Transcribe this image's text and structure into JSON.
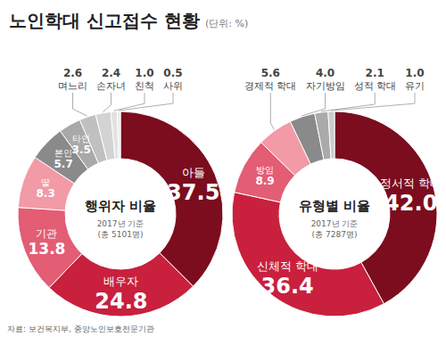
{
  "title": "노인학대 신고접수 현황",
  "subtitle": "(단위: %)",
  "source": "자료: 보건복지부, 중앙노인보호전문기관",
  "chart_data": [
    {
      "type": "donut",
      "title": "행위자 비율",
      "subtitle": "2017년 기준",
      "annotation": "(총 5101명)",
      "categories": [
        "아들",
        "배우자",
        "기관",
        "딸",
        "본인",
        "타인",
        "며느리",
        "손자녀",
        "친척",
        "사위"
      ],
      "values": [
        37.5,
        24.8,
        13.8,
        8.3,
        5.7,
        3.5,
        2.6,
        2.4,
        1.0,
        0.5
      ],
      "value_labels": [
        "37.5",
        "24.8",
        "13.8",
        "8.3",
        "5.7",
        "3.5",
        "2.6",
        "2.4",
        "1.0",
        "0.5"
      ],
      "colors": [
        "#7b0d1e",
        "#c8203d",
        "#e35d74",
        "#f29aa6",
        "#8a8a8a",
        "#a9a9a9",
        "#c0c0c0",
        "#d3d3d3",
        "#e2e2e2",
        "#ededed"
      ],
      "data_labels": true
    },
    {
      "type": "donut",
      "title": "유형별 비율",
      "subtitle": "2017년 기준",
      "annotation": "(총 7287명)",
      "categories": [
        "정서적 학대",
        "신체적 학대",
        "방임",
        "경제적 학대",
        "자기방임",
        "성적 학대",
        "유기"
      ],
      "values": [
        42.0,
        36.4,
        8.9,
        5.6,
        4.0,
        2.1,
        1.0
      ],
      "value_labels": [
        "42.0",
        "36.4",
        "8.9",
        "5.6",
        "4.0",
        "2.1",
        "1.0"
      ],
      "colors": [
        "#7b0d1e",
        "#c8203d",
        "#e35d74",
        "#f29aa6",
        "#8a8a8a",
        "#aaaaaa",
        "#cccccc"
      ],
      "data_labels": true
    }
  ]
}
